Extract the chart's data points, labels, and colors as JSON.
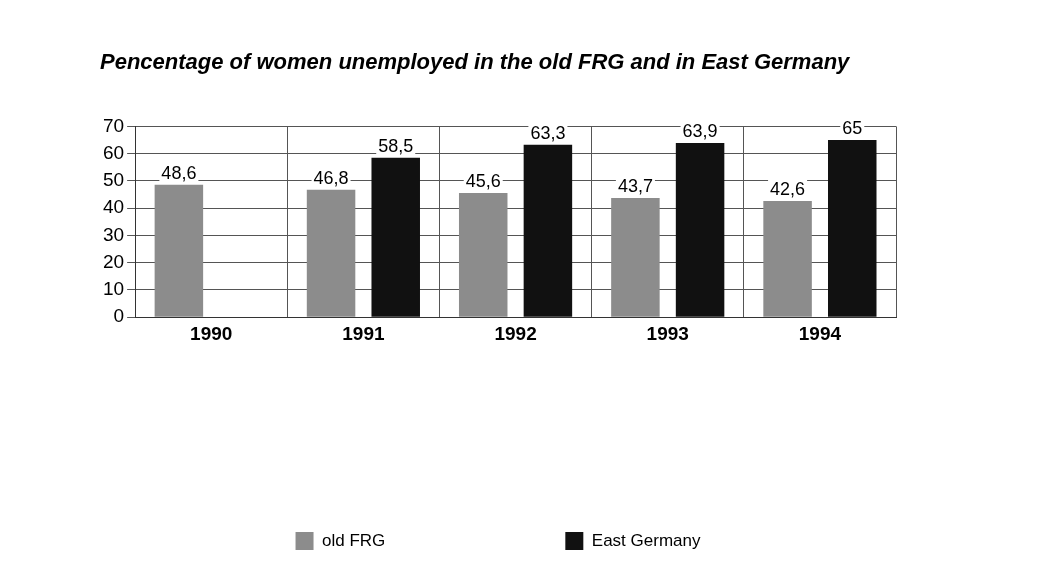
{
  "chart_data": {
    "type": "bar",
    "title": "Pencentage of women unemployed in the old FRG and in East Germany",
    "categories": [
      "1990",
      "1991",
      "1992",
      "1993",
      "1994"
    ],
    "series": [
      {
        "name": "old FRG",
        "color": "#8c8c8c",
        "values": [
          48.6,
          46.8,
          45.6,
          43.7,
          42.6
        ],
        "value_labels": [
          "48,6",
          "46,8",
          "45,6",
          "43,7",
          "42,6"
        ]
      },
      {
        "name": "East Germany",
        "color": "#111111",
        "values": [
          null,
          58.5,
          63.3,
          63.9,
          65
        ],
        "value_labels": [
          null,
          "58,5",
          "63,3",
          "63,9",
          "65"
        ]
      }
    ],
    "ylim": [
      0,
      70
    ],
    "yticks": [
      0,
      10,
      20,
      30,
      40,
      50,
      60,
      70
    ],
    "grid": true,
    "legend": "bottom"
  }
}
